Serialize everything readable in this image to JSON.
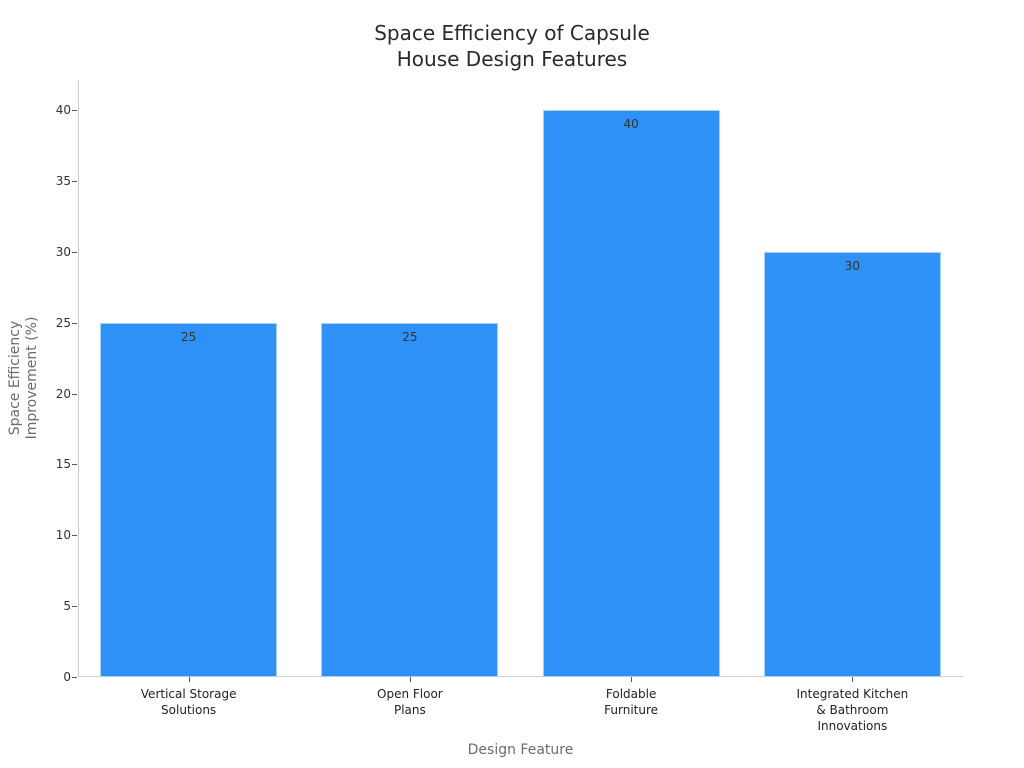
{
  "chart_data": {
    "type": "bar",
    "title": "Space Efficiency of Capsule\nHouse Design Features",
    "xlabel": "Design Feature",
    "ylabel": "Space Efficiency\nImprovement (%)",
    "categories": [
      "Vertical Storage\nSolutions",
      "Open Floor\nPlans",
      "Foldable\nFurniture",
      "Integrated Kitchen\n& Bathroom\nInnovations"
    ],
    "values": [
      25,
      25,
      40,
      30
    ],
    "data_labels": [
      "25",
      "25",
      "40",
      "30"
    ],
    "ylim": [
      0,
      42
    ],
    "yticks": [
      0,
      5,
      10,
      15,
      20,
      25,
      30,
      35,
      40
    ],
    "ytick_labels": [
      "0",
      "5",
      "10",
      "15",
      "20",
      "25",
      "30",
      "35",
      "40"
    ],
    "grid": false,
    "legend": null,
    "colors": {
      "bar": "#2e91f8",
      "bar_edge": "#a9d0f5",
      "axis": "#cfcfcf"
    }
  }
}
